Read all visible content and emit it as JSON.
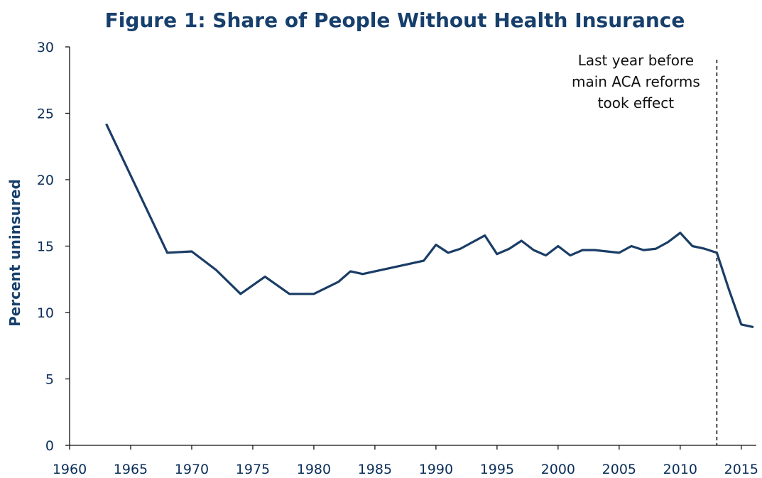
{
  "chart_data": {
    "type": "line",
    "title": "Figure 1: Share of People Without Health Insurance",
    "y_label": "Percent uninsured",
    "x": [
      1963,
      1968,
      1970,
      1972,
      1974,
      1976,
      1978,
      1980,
      1982,
      1983,
      1984,
      1986,
      1988,
      1989,
      1990,
      1991,
      1992,
      1993,
      1994,
      1995,
      1996,
      1997,
      1998,
      1999,
      2000,
      2001,
      2002,
      2003,
      2004,
      2005,
      2006,
      2007,
      2008,
      2009,
      2010,
      2011,
      2012,
      2013,
      2014,
      2015,
      2016
    ],
    "series": [
      {
        "name": "Percent uninsured",
        "color": "#1a3d66",
        "values": [
          24.2,
          14.5,
          14.6,
          13.2,
          11.4,
          12.7,
          11.4,
          11.4,
          12.3,
          13.1,
          12.9,
          13.3,
          13.7,
          13.9,
          15.1,
          14.5,
          14.8,
          15.3,
          15.8,
          14.4,
          14.8,
          15.4,
          14.7,
          14.3,
          15.0,
          14.3,
          14.7,
          14.7,
          14.6,
          14.5,
          15.0,
          14.7,
          14.8,
          15.3,
          16.0,
          15.0,
          14.8,
          14.5,
          11.7,
          9.1,
          8.9
        ]
      }
    ],
    "xlim": [
      1960,
      2016
    ],
    "xticks": [
      1960,
      1965,
      1970,
      1975,
      1980,
      1985,
      1990,
      1995,
      2000,
      2005,
      2010,
      2015
    ],
    "ylim": [
      0,
      30
    ],
    "yticks": [
      0,
      5,
      10,
      15,
      20,
      25,
      30
    ],
    "grid": false,
    "annotation": {
      "x": 2013,
      "lines": [
        "Last year before",
        "main ACA reforms",
        "took effect"
      ]
    }
  }
}
